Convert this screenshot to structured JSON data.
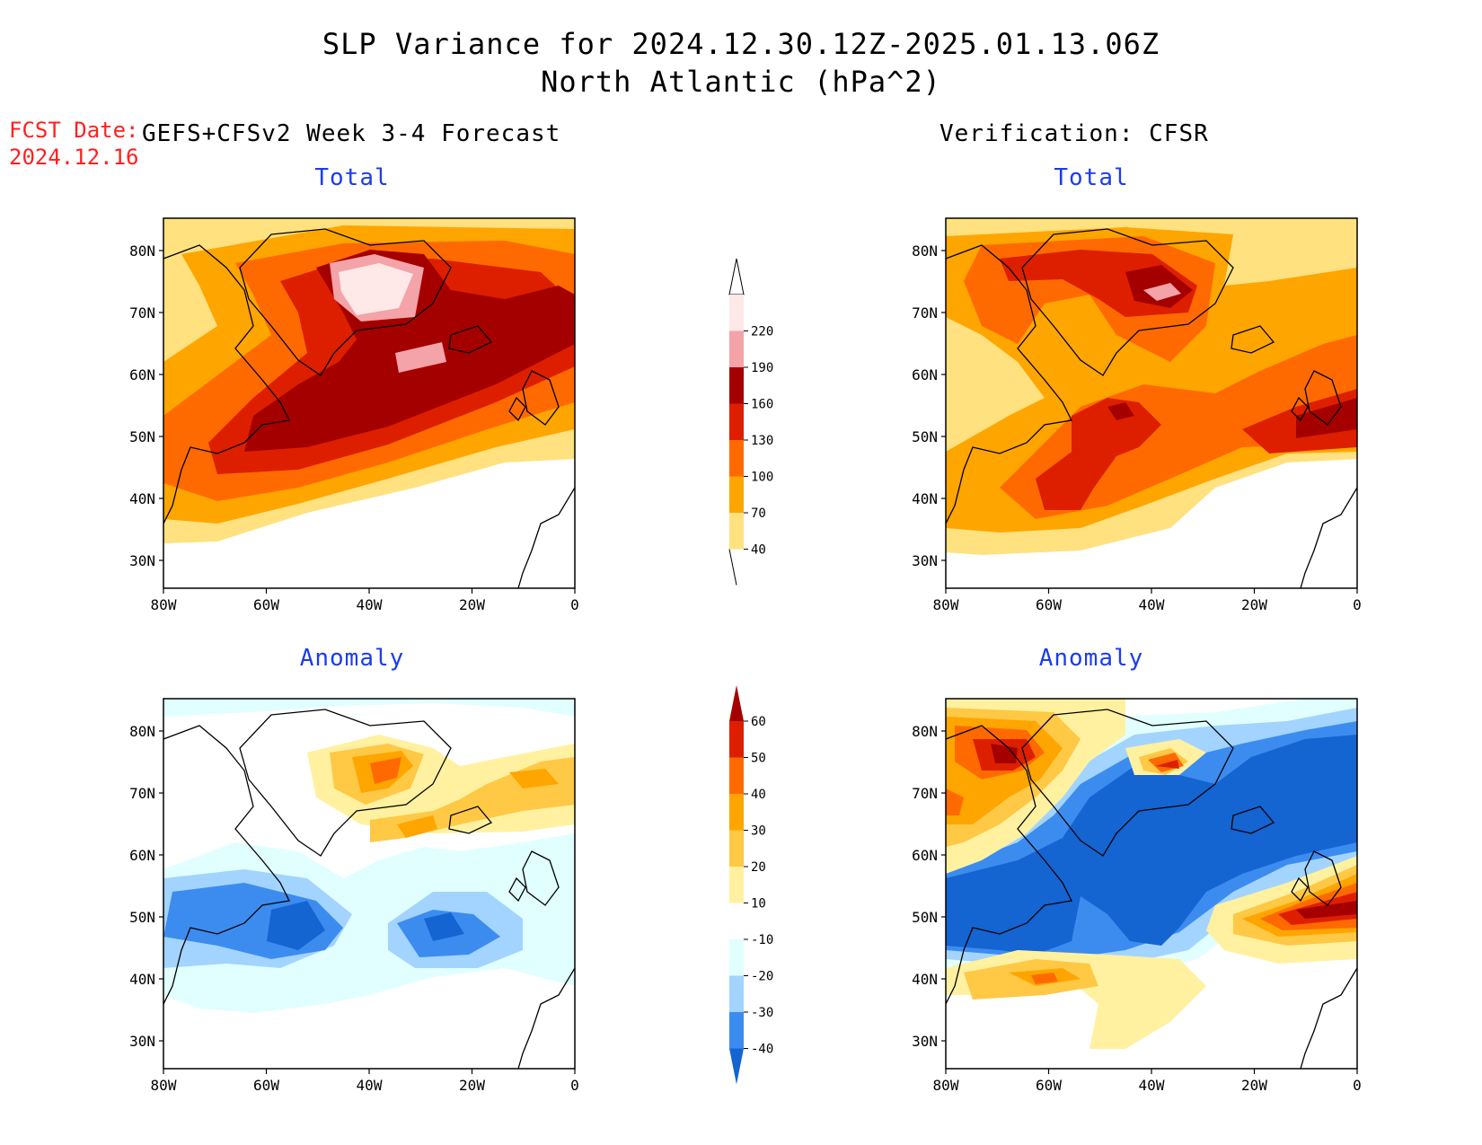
{
  "title": {
    "line1": "SLP Variance for 2024.12.30.12Z-2025.01.13.06Z",
    "line2": "North Atlantic (hPa^2)"
  },
  "fcst": {
    "label": "FCST Date:",
    "date": "2024.12.16"
  },
  "left_header": "GEFS+CFSv2 Week 3-4 Forecast",
  "right_header": "Verification: CFSR",
  "panels": {
    "fc_total_title": "Total",
    "vf_total_title": "Total",
    "fc_anom_title": "Anomaly",
    "vf_anom_title": "Anomaly"
  },
  "axes": {
    "lat_labels": [
      "80N",
      "70N",
      "60N",
      "50N",
      "40N",
      "30N"
    ],
    "lon_labels": [
      "80W",
      "60W",
      "40W",
      "20W",
      "0"
    ]
  },
  "total_colorbar": {
    "labels": [
      "220",
      "190",
      "160",
      "130",
      "100",
      "70",
      "40"
    ],
    "colors": [
      "#ffe8e8",
      "#f4a3a8",
      "#a50000",
      "#dd1f00",
      "#ff6a00",
      "#ffa500",
      "#ffe17f"
    ]
  },
  "anomaly_colorbar": {
    "labels": [
      "60",
      "50",
      "40",
      "30",
      "20",
      "10",
      "-10",
      "-20",
      "-30",
      "-40"
    ],
    "colors": [
      "#a50000",
      "#dd1f00",
      "#ff6a00",
      "#ffa500",
      "#ffc845",
      "#fff1a0",
      "#ffffff",
      "#e1ffff",
      "#a3d4ff",
      "#3c8cf0",
      "#1464d2"
    ]
  }
}
